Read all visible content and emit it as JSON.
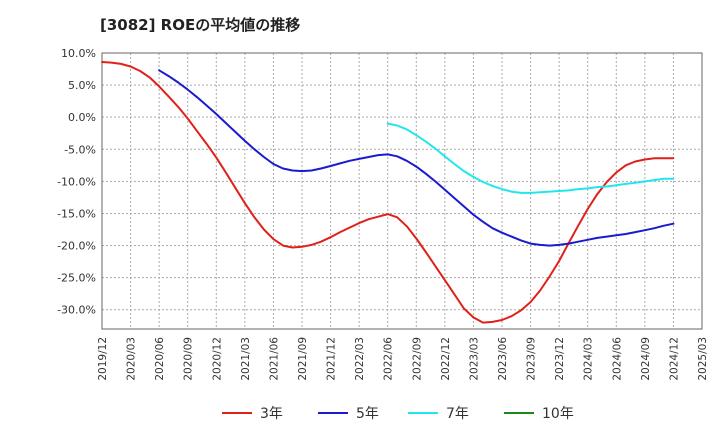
{
  "chart_data": {
    "type": "line",
    "title": "[3082]  ROEの平均値の推移",
    "xlabel": "",
    "ylabel": "",
    "ylim": [
      -33,
      10
    ],
    "xlim": [
      "2019-12",
      "2025-03"
    ],
    "y_ticks": [
      10,
      5,
      0,
      -5,
      -10,
      -15,
      -20,
      -25,
      -30
    ],
    "y_tick_labels": [
      "10.0%",
      "5.0%",
      "0.0%",
      "-5.0%",
      "-10.0%",
      "-15.0%",
      "-20.0%",
      "-25.0%",
      "-30.0%"
    ],
    "x_tick_labels": [
      "2019/12",
      "2020/03",
      "2020/06",
      "2020/09",
      "2020/12",
      "2021/03",
      "2021/06",
      "2021/09",
      "2021/12",
      "2022/03",
      "2022/06",
      "2022/09",
      "2022/12",
      "2023/03",
      "2023/06",
      "2023/09",
      "2023/12",
      "2024/03",
      "2024/06",
      "2024/09",
      "2024/12",
      "2025/03"
    ],
    "grid": true,
    "legend_position": "bottom",
    "series": [
      {
        "name": "3年",
        "color": "#e0201a",
        "x": [
          "2019-12",
          "2020-01",
          "2020-02",
          "2020-03",
          "2020-04",
          "2020-05",
          "2020-06",
          "2020-07",
          "2020-08",
          "2020-09",
          "2020-10",
          "2020-11",
          "2020-12",
          "2021-01",
          "2021-02",
          "2021-03",
          "2021-04",
          "2021-05",
          "2021-06",
          "2021-07",
          "2021-08",
          "2021-09",
          "2021-10",
          "2021-11",
          "2021-12",
          "2022-01",
          "2022-02",
          "2022-03",
          "2022-04",
          "2022-05",
          "2022-06",
          "2022-07",
          "2022-08",
          "2022-09",
          "2022-10",
          "2022-11",
          "2022-12",
          "2023-01",
          "2023-02",
          "2023-03",
          "2023-04",
          "2023-05",
          "2023-06",
          "2023-07",
          "2023-08",
          "2023-09",
          "2023-10",
          "2023-11",
          "2023-12",
          "2024-01",
          "2024-02",
          "2024-03",
          "2024-04",
          "2024-05",
          "2024-06",
          "2024-07",
          "2024-08",
          "2024-09",
          "2024-10",
          "2024-11",
          "2024-12"
        ],
        "values": [
          8.6,
          8.5,
          8.3,
          7.9,
          7.2,
          6.2,
          4.8,
          3.2,
          1.6,
          -0.2,
          -2.2,
          -4.2,
          -6.3,
          -8.6,
          -11.0,
          -13.4,
          -15.6,
          -17.5,
          -19.0,
          -20.0,
          -20.3,
          -20.2,
          -19.9,
          -19.4,
          -18.7,
          -17.9,
          -17.2,
          -16.5,
          -15.9,
          -15.5,
          -15.1,
          -15.6,
          -17.0,
          -18.9,
          -21.0,
          -23.2,
          -25.4,
          -27.6,
          -29.8,
          -31.2,
          -32.0,
          -31.9,
          -31.6,
          -31.0,
          -30.1,
          -28.8,
          -27.0,
          -24.8,
          -22.4,
          -19.6,
          -16.9,
          -14.3,
          -12.0,
          -10.1,
          -8.6,
          -7.5,
          -6.9,
          -6.6,
          -6.4,
          -6.4,
          -6.4
        ]
      },
      {
        "name": "5年",
        "color": "#1a1ad0",
        "x": [
          "2020-06",
          "2020-07",
          "2020-08",
          "2020-09",
          "2020-10",
          "2020-11",
          "2020-12",
          "2021-01",
          "2021-02",
          "2021-03",
          "2021-04",
          "2021-05",
          "2021-06",
          "2021-07",
          "2021-08",
          "2021-09",
          "2021-10",
          "2021-11",
          "2021-12",
          "2022-01",
          "2022-02",
          "2022-03",
          "2022-04",
          "2022-05",
          "2022-06",
          "2022-07",
          "2022-08",
          "2022-09",
          "2022-10",
          "2022-11",
          "2022-12",
          "2023-01",
          "2023-02",
          "2023-03",
          "2023-04",
          "2023-05",
          "2023-06",
          "2023-07",
          "2023-08",
          "2023-09",
          "2023-10",
          "2023-11",
          "2023-12",
          "2024-01",
          "2024-02",
          "2024-03",
          "2024-04",
          "2024-05",
          "2024-06",
          "2024-07",
          "2024-08",
          "2024-09",
          "2024-10",
          "2024-11",
          "2024-12"
        ],
        "values": [
          7.3,
          6.4,
          5.4,
          4.3,
          3.1,
          1.8,
          0.5,
          -0.9,
          -2.3,
          -3.7,
          -5.0,
          -6.2,
          -7.3,
          -8.0,
          -8.3,
          -8.4,
          -8.3,
          -8.0,
          -7.6,
          -7.2,
          -6.8,
          -6.5,
          -6.2,
          -5.9,
          -5.8,
          -6.1,
          -6.8,
          -7.7,
          -8.8,
          -10.0,
          -11.3,
          -12.6,
          -13.9,
          -15.2,
          -16.3,
          -17.3,
          -18.0,
          -18.6,
          -19.2,
          -19.7,
          -19.9,
          -20.0,
          -19.9,
          -19.7,
          -19.4,
          -19.1,
          -18.8,
          -18.6,
          -18.4,
          -18.2,
          -17.9,
          -17.6,
          -17.3,
          -16.9,
          -16.6
        ]
      },
      {
        "name": "7年",
        "color": "#22e6ee",
        "x": [
          "2022-06",
          "2022-07",
          "2022-08",
          "2022-09",
          "2022-10",
          "2022-11",
          "2022-12",
          "2023-01",
          "2023-02",
          "2023-03",
          "2023-04",
          "2023-05",
          "2023-06",
          "2023-07",
          "2023-08",
          "2023-09",
          "2023-10",
          "2023-11",
          "2023-12",
          "2024-01",
          "2024-02",
          "2024-03",
          "2024-04",
          "2024-05",
          "2024-06",
          "2024-07",
          "2024-08",
          "2024-09",
          "2024-10",
          "2024-11",
          "2024-12"
        ],
        "values": [
          -1.0,
          -1.3,
          -1.9,
          -2.8,
          -3.8,
          -4.9,
          -6.1,
          -7.3,
          -8.4,
          -9.3,
          -10.1,
          -10.7,
          -11.2,
          -11.6,
          -11.8,
          -11.8,
          -11.7,
          -11.6,
          -11.5,
          -11.4,
          -11.2,
          -11.1,
          -10.9,
          -10.8,
          -10.6,
          -10.4,
          -10.2,
          -10.0,
          -9.8,
          -9.6,
          -9.6
        ]
      },
      {
        "name": "10年",
        "color": "#1a8a1a",
        "x": [],
        "values": []
      }
    ]
  }
}
